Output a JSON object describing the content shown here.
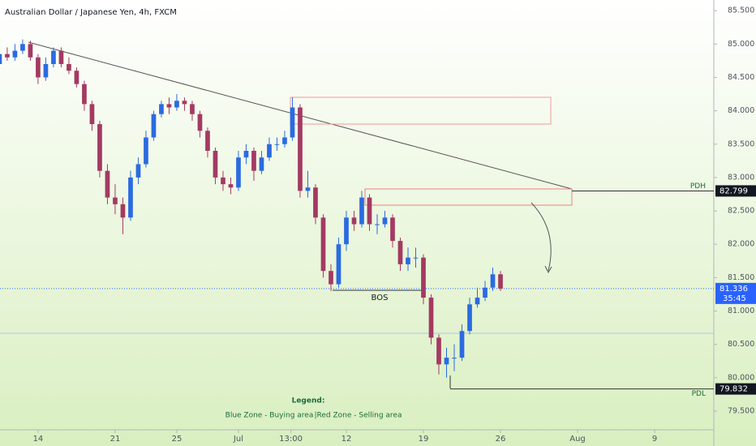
{
  "chart_data": {
    "type": "candlestick",
    "title": "Australian Dollar / Japanese Yen, 4h, FXCM",
    "x": [
      -2.5,
      -2,
      -1.5,
      -1,
      -0.5,
      0,
      0.5,
      1,
      1.5,
      2,
      2.5,
      3,
      3.5,
      4,
      4.5,
      5,
      5.5,
      6,
      6.5,
      7,
      7.5,
      8,
      8.5,
      9,
      9.5,
      10,
      10.5,
      11,
      11.5,
      12,
      12.5,
      13,
      13.5,
      14,
      14.5,
      15,
      15.5,
      16,
      16.5,
      17,
      17.5,
      18,
      18.5,
      19,
      19.5,
      20,
      20.5,
      21,
      21.5,
      22,
      22.5,
      23,
      23.5,
      24,
      24.5,
      25,
      25.5,
      26,
      26.5,
      27,
      27.5,
      28,
      28.5,
      29,
      29.5,
      30
    ],
    "open": [
      84.7,
      84.85,
      84.8,
      84.9,
      85.0,
      84.8,
      84.5,
      84.7,
      84.9,
      84.7,
      84.6,
      84.4,
      84.1,
      83.8,
      83.1,
      82.7,
      82.6,
      82.4,
      83.0,
      83.2,
      83.6,
      83.95,
      84.1,
      84.05,
      84.15,
      84.1,
      83.95,
      83.7,
      83.4,
      83.0,
      82.9,
      82.85,
      83.3,
      83.4,
      83.1,
      83.3,
      83.5,
      83.5,
      83.6,
      84.05,
      82.8,
      82.85,
      82.4,
      81.6,
      81.4,
      82.0,
      82.4,
      82.3,
      82.7,
      82.3,
      82.3,
      82.4,
      82.05,
      81.7,
      81.8,
      81.8,
      81.2,
      80.6,
      80.2,
      80.3,
      80.3,
      80.7,
      81.1,
      81.2,
      81.35,
      81.55
    ],
    "high": [
      84.9,
      84.95,
      85.0,
      85.07,
      85.05,
      84.85,
      84.8,
      84.95,
      84.95,
      84.8,
      84.65,
      84.45,
      84.15,
      83.85,
      83.2,
      82.9,
      82.7,
      83.1,
      83.3,
      83.7,
      84.0,
      84.15,
      84.2,
      84.25,
      84.2,
      84.15,
      84.0,
      83.75,
      83.45,
      83.1,
      83.0,
      83.4,
      83.5,
      83.45,
      83.4,
      83.6,
      83.6,
      83.7,
      84.2,
      84.1,
      83.1,
      82.9,
      82.45,
      81.7,
      82.1,
      82.5,
      82.5,
      82.8,
      82.75,
      82.45,
      82.5,
      82.45,
      82.1,
      81.95,
      81.95,
      81.85,
      81.25,
      80.65,
      80.45,
      80.5,
      80.8,
      81.2,
      81.35,
      81.45,
      81.65,
      81.6
    ],
    "low": [
      84.65,
      84.75,
      84.75,
      84.85,
      84.75,
      84.4,
      84.45,
      84.65,
      84.65,
      84.55,
      84.35,
      84.0,
      83.7,
      83.0,
      82.6,
      82.45,
      82.15,
      82.35,
      82.9,
      83.15,
      83.55,
      83.9,
      83.95,
      84.0,
      84.0,
      83.85,
      83.6,
      83.3,
      82.9,
      82.8,
      82.75,
      82.8,
      83.2,
      82.95,
      83.05,
      83.25,
      83.4,
      83.45,
      83.55,
      82.7,
      82.7,
      82.3,
      81.5,
      81.3,
      81.35,
      81.9,
      82.2,
      82.25,
      82.2,
      82.15,
      82.25,
      81.95,
      81.6,
      81.6,
      81.65,
      81.1,
      80.5,
      80.05,
      80.0,
      80.1,
      80.25,
      80.65,
      81.05,
      81.15,
      81.3,
      81.3
    ],
    "close": [
      84.85,
      84.8,
      84.9,
      85.0,
      84.8,
      84.5,
      84.7,
      84.9,
      84.7,
      84.6,
      84.4,
      84.1,
      83.8,
      83.1,
      82.7,
      82.6,
      82.4,
      83.0,
      83.2,
      83.6,
      83.95,
      84.1,
      84.05,
      84.15,
      84.1,
      83.95,
      83.7,
      83.4,
      83.0,
      82.9,
      82.85,
      83.3,
      83.4,
      83.1,
      83.3,
      83.5,
      83.5,
      83.6,
      84.05,
      82.8,
      82.85,
      82.4,
      81.6,
      81.4,
      82.0,
      82.4,
      82.3,
      82.7,
      82.3,
      82.3,
      82.4,
      82.05,
      81.7,
      81.8,
      81.8,
      81.2,
      80.6,
      80.2,
      80.3,
      80.3,
      80.7,
      81.1,
      81.2,
      81.35,
      81.55,
      81.336
    ],
    "up_color": "#2a6be0",
    "down_color": "#a33a62",
    "xlim": [
      -2.47,
      43.84
    ],
    "xticks": [
      {
        "value": 0,
        "label": "14"
      },
      {
        "value": 5,
        "label": "21"
      },
      {
        "value": 9,
        "label": "25"
      },
      {
        "value": 13,
        "label": "Jul"
      },
      {
        "value": 16.4,
        "label": "13:00"
      },
      {
        "value": 20,
        "label": "12"
      },
      {
        "value": 25,
        "label": "19"
      },
      {
        "value": 30,
        "label": "26"
      },
      {
        "value": 35,
        "label": "Aug"
      },
      {
        "value": 40,
        "label": "9"
      }
    ],
    "ylim": [
      79.22,
      85.66
    ],
    "yticks": [
      {
        "value": 79.5,
        "label": "79.500"
      },
      {
        "value": 80,
        "label": "80.000"
      },
      {
        "value": 80.5,
        "label": "80.500"
      },
      {
        "value": 81,
        "label": "81.000"
      },
      {
        "value": 81.5,
        "label": "81.500"
      },
      {
        "value": 82,
        "label": "82.000"
      },
      {
        "value": 82.5,
        "label": "82.500"
      },
      {
        "value": 83,
        "label": "83.000"
      },
      {
        "value": 83.5,
        "label": "83.500"
      },
      {
        "value": 84,
        "label": "84.000"
      },
      {
        "value": 84.5,
        "label": "84.500"
      },
      {
        "value": 85,
        "label": "85.000"
      },
      {
        "value": 85.5,
        "label": "85.500"
      }
    ]
  },
  "annotations": {
    "pdh": {
      "label": "PDH",
      "value": 82.799
    },
    "pdl": {
      "label": "PDL",
      "value": 79.832
    },
    "last_price": {
      "value": 81.336,
      "countdown": "35:45"
    },
    "bos": "BOS",
    "legend": {
      "title": "Legend:",
      "blue": "Blue Zone - Buying area",
      "separator": "|",
      "red": "Red Zone - Selling area"
    }
  }
}
